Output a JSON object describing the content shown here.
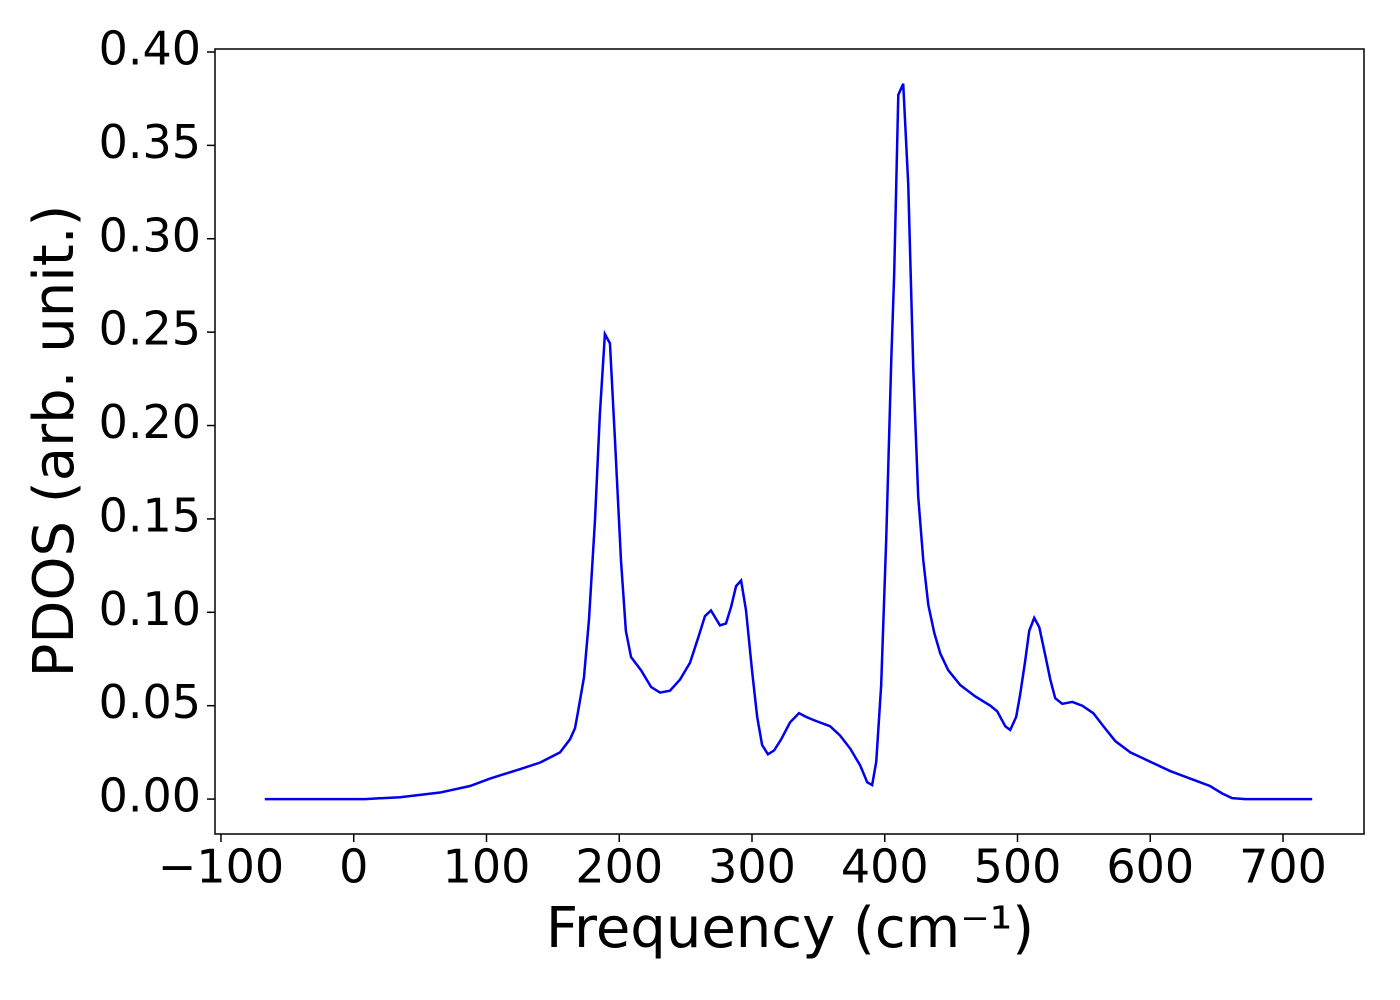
{
  "chart_data": {
    "type": "line",
    "xlabel": "Frequency (cm⁻¹)",
    "ylabel": "PDOS (arb. unit.)",
    "xlim": [
      -104.5,
      761
    ],
    "ylim": [
      -0.0187,
      0.4016
    ],
    "xticks": [
      {
        "value": -100,
        "label": "−100"
      },
      0,
      100,
      200,
      300,
      400,
      500,
      600,
      700
    ],
    "yticks": [
      {
        "value": 0,
        "label": "0.00"
      },
      {
        "value": 0.05,
        "label": "0.05"
      },
      {
        "value": 0.1,
        "label": "0.10"
      },
      {
        "value": 0.15,
        "label": "0.15"
      },
      {
        "value": 0.2,
        "label": "0.20"
      },
      {
        "value": 0.25,
        "label": "0.25"
      },
      {
        "value": 0.3,
        "label": "0.30"
      },
      {
        "value": 0.35,
        "label": "0.35"
      },
      {
        "value": 0.4,
        "label": "0.40"
      }
    ],
    "grid": false,
    "series": [
      {
        "color": "#0000ee",
        "x": [
          -67,
          8.5,
          35,
          65,
          87.6,
          102.7,
          114,
          125.2,
          140.3,
          155.4,
          162.9,
          166.7,
          169,
          173.4,
          177.2,
          181.7,
          185.4,
          189.2,
          193,
          196.8,
          201.3,
          205,
          208.9,
          216.4,
          224,
          230.7,
          238.2,
          245.8,
          253.3,
          259.3,
          264.6,
          269.1,
          275.9,
          280.4,
          284.3,
          288,
          291.8,
          295.5,
          300,
          303.9,
          307.6,
          312,
          316.6,
          322,
          328.6,
          335.4,
          340.7,
          347.5,
          358.8,
          366.4,
          374,
          381.5,
          386.8,
          390.5,
          393.6,
          397.3,
          401.1,
          404.9,
          407.1,
          410.2,
          413.9,
          417.7,
          421.5,
          425.2,
          429,
          432.8,
          437.3,
          441.8,
          447.8,
          456.9,
          468.1,
          479.5,
          484.7,
          490.8,
          494.5,
          499,
          502,
          505.8,
          508.8,
          512.6,
          516.4,
          520.9,
          524.7,
          528.4,
          533.7,
          541.3,
          548.8,
          557.1,
          564.7,
          573.7,
          585,
          600,
          615,
          630,
          645,
          654.2,
          661.7,
          671.5,
          722
        ],
        "values": [
          0,
          0,
          0.001,
          0.0035,
          0.007,
          0.011,
          0.0135,
          0.016,
          0.0195,
          0.025,
          0.032,
          0.038,
          0.047,
          0.065,
          0.096,
          0.149,
          0.206,
          0.249,
          0.244,
          0.192,
          0.128,
          0.09,
          0.076,
          0.069,
          0.06,
          0.057,
          0.058,
          0.064,
          0.073,
          0.086,
          0.098,
          0.101,
          0.093,
          0.094,
          0.103,
          0.114,
          0.117,
          0.101,
          0.069,
          0.044,
          0.029,
          0.024,
          0.026,
          0.032,
          0.041,
          0.046,
          0.044,
          0.042,
          0.039,
          0.034,
          0.027,
          0.018,
          0.009,
          0.0075,
          0.02,
          0.061,
          0.139,
          0.235,
          0.281,
          0.377,
          0.383,
          0.329,
          0.23,
          0.162,
          0.128,
          0.104,
          0.089,
          0.078,
          0.069,
          0.061,
          0.055,
          0.05,
          0.047,
          0.039,
          0.037,
          0.044,
          0.056,
          0.074,
          0.09,
          0.097,
          0.092,
          0.077,
          0.064,
          0.054,
          0.051,
          0.052,
          0.05,
          0.046,
          0.039,
          0.031,
          0.025,
          0.02,
          0.015,
          0.011,
          0.007,
          0.003,
          0.0005,
          0,
          0
        ]
      }
    ]
  }
}
